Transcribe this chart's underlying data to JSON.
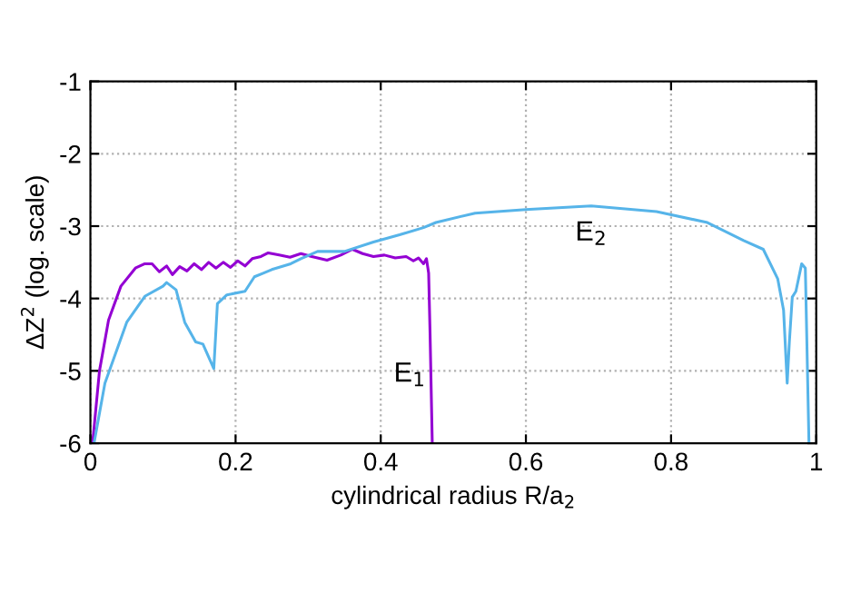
{
  "chart_data": {
    "type": "line",
    "xlabel": "cylindrical radius R/a$_{2}$",
    "ylabel": "ΔZ$^{2}$ (log. scale)",
    "xlim": [
      0,
      1
    ],
    "ylim": [
      -6,
      -1
    ],
    "xticks": [
      0,
      0.2,
      0.4,
      0.6,
      0.8,
      1
    ],
    "yticks": [
      -6,
      -5,
      -4,
      -3,
      -2,
      -1
    ],
    "grid": true,
    "line_style": "solid",
    "series": [
      {
        "color": "#9400d3",
        "x": [
          0.003,
          0.0125,
          0.025,
          0.042,
          0.062,
          0.075,
          0.085,
          0.095,
          0.105,
          0.113,
          0.123,
          0.133,
          0.143,
          0.153,
          0.163,
          0.173,
          0.183,
          0.193,
          0.203,
          0.213,
          0.223,
          0.235,
          0.245,
          0.26,
          0.275,
          0.29,
          0.305,
          0.326,
          0.345,
          0.361,
          0.375,
          0.39,
          0.405,
          0.42,
          0.435,
          0.445,
          0.452,
          0.459,
          0.463,
          0.466,
          0.468,
          0.47,
          0.471
        ],
        "values": [
          -6,
          -5,
          -4.3,
          -3.83,
          -3.58,
          -3.52,
          -3.52,
          -3.63,
          -3.55,
          -3.67,
          -3.56,
          -3.62,
          -3.52,
          -3.6,
          -3.5,
          -3.58,
          -3.5,
          -3.57,
          -3.48,
          -3.55,
          -3.45,
          -3.42,
          -3.37,
          -3.4,
          -3.43,
          -3.38,
          -3.42,
          -3.47,
          -3.4,
          -3.32,
          -3.38,
          -3.42,
          -3.4,
          -3.44,
          -3.42,
          -3.48,
          -3.44,
          -3.52,
          -3.45,
          -3.65,
          -4.5,
          -5.5,
          -6
        ]
      },
      {
        "color": "#56b4e9",
        "x": [
          0.005,
          0.02,
          0.05,
          0.075,
          0.1,
          0.105,
          0.118,
          0.13,
          0.145,
          0.155,
          0.17,
          0.175,
          0.188,
          0.213,
          0.226,
          0.238,
          0.25,
          0.276,
          0.29,
          0.313,
          0.35,
          0.39,
          0.426,
          0.459,
          0.476,
          0.53,
          0.6,
          0.69,
          0.78,
          0.85,
          0.9,
          0.927,
          0.947,
          0.955,
          0.96,
          0.963,
          0.967,
          0.972,
          0.98,
          0.985,
          0.99
        ],
        "values": [
          -6,
          -5.17,
          -4.33,
          -3.97,
          -3.83,
          -3.78,
          -3.88,
          -4.33,
          -4.6,
          -4.63,
          -4.97,
          -4.07,
          -3.95,
          -3.9,
          -3.7,
          -3.65,
          -3.6,
          -3.52,
          -3.45,
          -3.35,
          -3.35,
          -3.22,
          -3.12,
          -3.02,
          -2.95,
          -2.82,
          -2.77,
          -2.72,
          -2.8,
          -2.95,
          -3.2,
          -3.32,
          -3.73,
          -4.16,
          -5.17,
          -4.6,
          -3.98,
          -3.9,
          -3.52,
          -3.58,
          -6
        ]
      }
    ],
    "annotations": [
      "E$_{1}$",
      "E$_{2}$"
    ]
  }
}
